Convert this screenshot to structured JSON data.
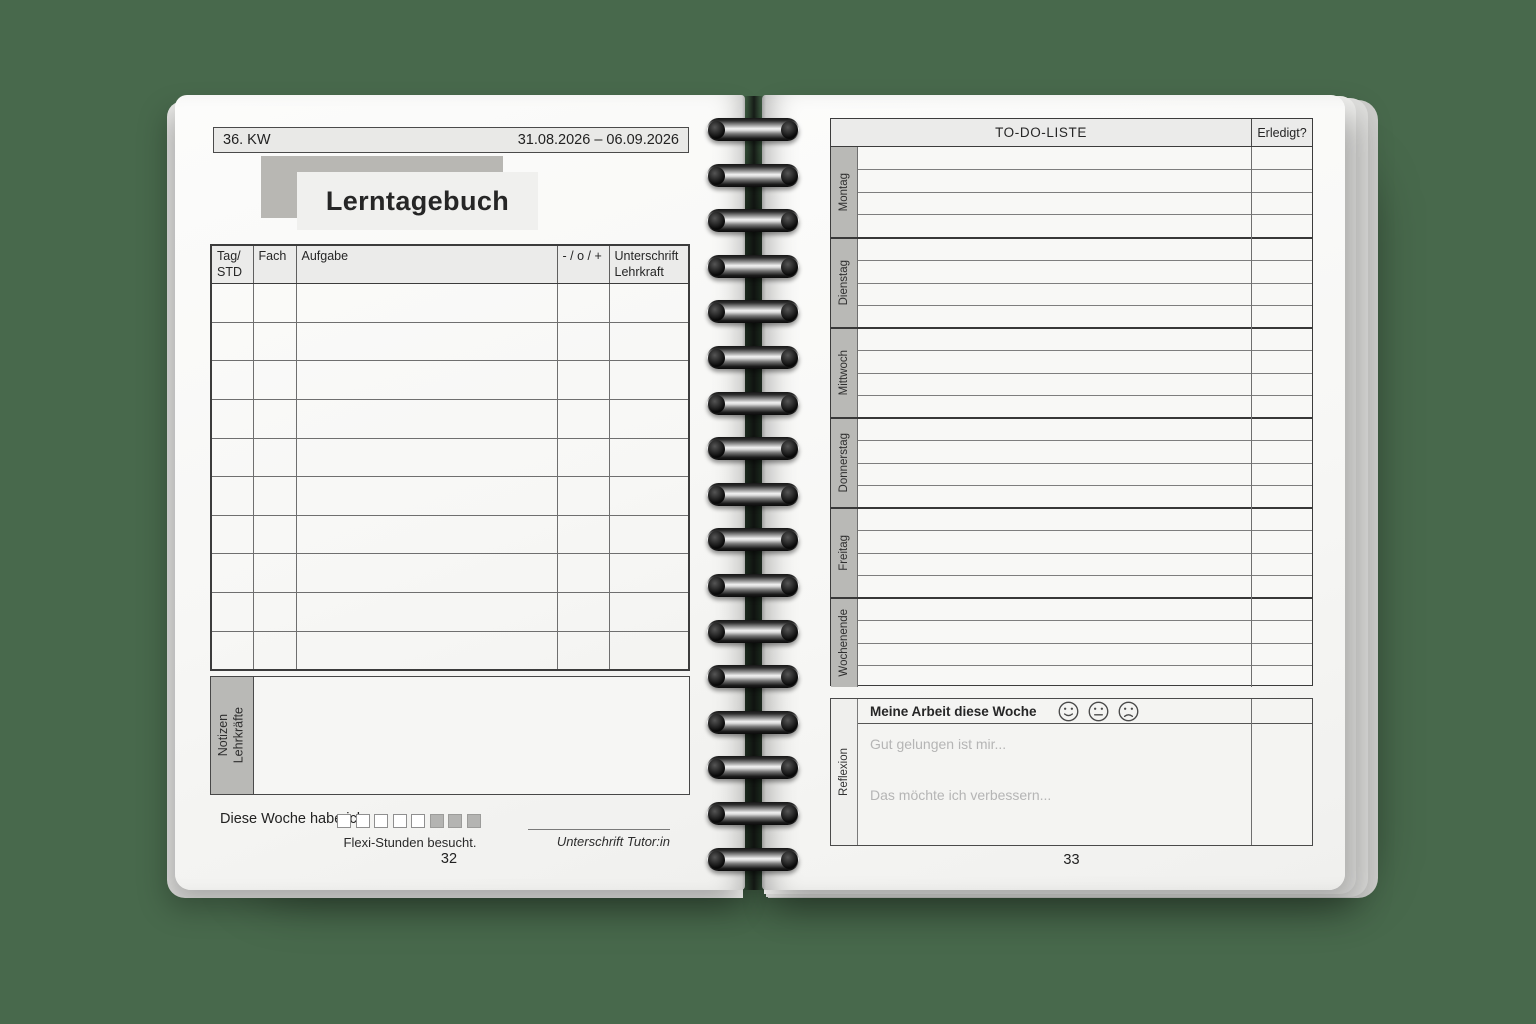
{
  "canvas": {
    "background_color": "#48694c",
    "paper_color": "#f8f8f6",
    "label_gray": "#b9b9b6",
    "header_fill": "#ebebea",
    "placeholder_text_color": "#b5b5b5"
  },
  "left_page": {
    "page_number": "32",
    "header": {
      "week": "36. KW",
      "date_range": "31.08.2026 – 06.09.2026"
    },
    "title": "Lerntagebuch",
    "table": {
      "columns": [
        {
          "l1": "Tag/",
          "l2": "STD"
        },
        {
          "l1": "Fach",
          "l2": ""
        },
        {
          "l1": "Aufgabe",
          "l2": ""
        },
        {
          "l1": "- / o / +",
          "l2": ""
        },
        {
          "l1": "Unterschrift",
          "l2": "Lehrkraft"
        }
      ],
      "empty_row_count": 10
    },
    "notes_label": {
      "line1": "Notizen",
      "line2": "Lehrkräfte"
    },
    "week_summary": {
      "prefix": "Diese Woche habe ich",
      "suffix": "Flexi-Stunden besucht.",
      "checkbox_count": 8,
      "checked_count": 3
    },
    "signature_label": "Unterschrift Tutor:in"
  },
  "right_page": {
    "page_number": "33",
    "todo": {
      "title": "TO-DO-LISTE",
      "done_column": "Erledigt?",
      "days": [
        "Montag",
        "Dienstag",
        "Mittwoch",
        "Donnerstag",
        "Freitag",
        "Wochenende"
      ],
      "rows_per_day": 4
    },
    "reflection": {
      "label": "Reflexion",
      "heading": "Meine Arbeit diese Woche",
      "smileys": [
        "smiley-happy",
        "smiley-neutral",
        "smiley-sad"
      ],
      "prompt_good": "Gut gelungen ist mir...",
      "prompt_improve": "Das möchte ich verbessern..."
    }
  }
}
